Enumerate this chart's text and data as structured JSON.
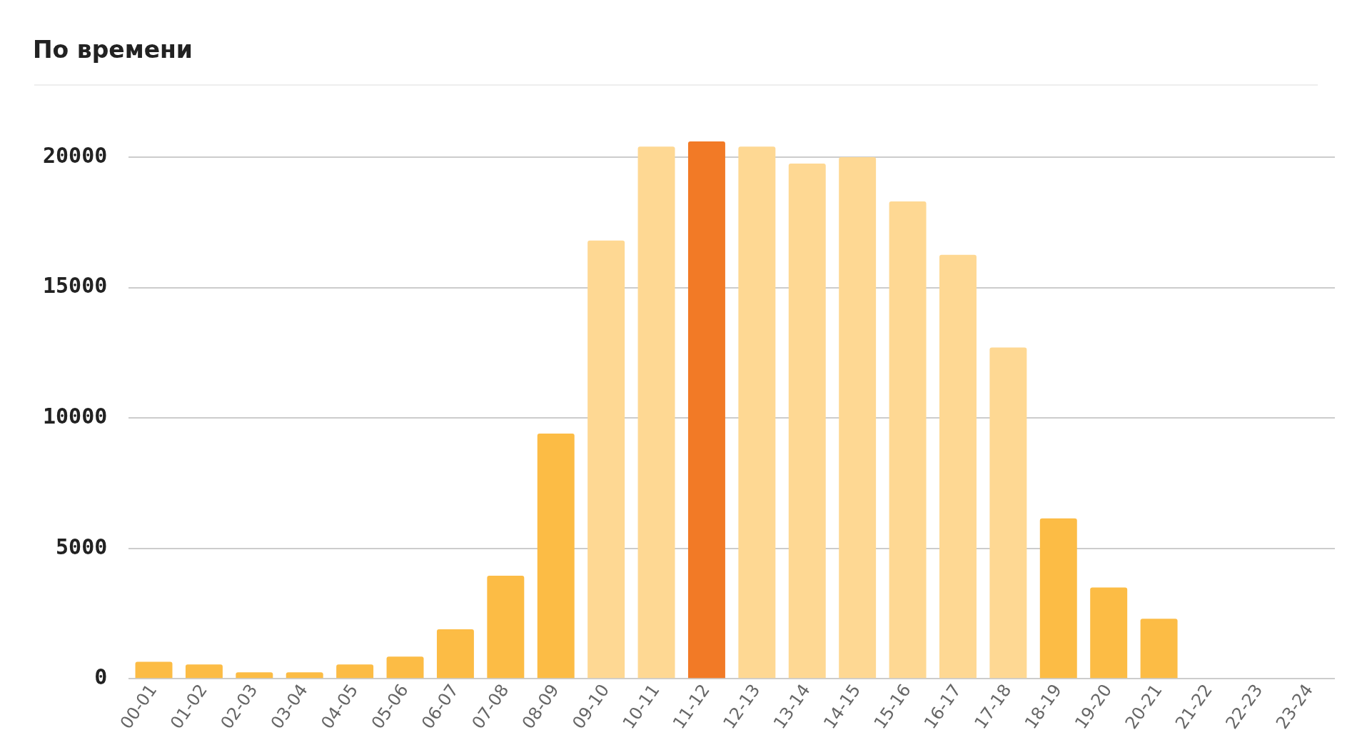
{
  "chart_data": {
    "type": "bar",
    "title": "По времени",
    "categories": [
      "00-01",
      "01-02",
      "02-03",
      "03-04",
      "04-05",
      "05-06",
      "06-07",
      "07-08",
      "08-09",
      "09-10",
      "10-11",
      "11-12",
      "12-13",
      "13-14",
      "14-15",
      "15-16",
      "16-17",
      "17-18",
      "18-19",
      "19-20",
      "20-21",
      "21-22",
      "22-23",
      "23-24"
    ],
    "values": [
      650,
      550,
      250,
      250,
      550,
      850,
      1900,
      3950,
      9400,
      16800,
      20400,
      20600,
      20400,
      19750,
      20000,
      18300,
      16250,
      12700,
      6150,
      3500,
      2300,
      null,
      null,
      null
    ],
    "colors": [
      "#fcbc45",
      "#fcbc45",
      "#fcbc45",
      "#fcbc45",
      "#fcbc45",
      "#fcbc45",
      "#fcbc45",
      "#fcbc45",
      "#fcbc45",
      "#fed893",
      "#fed893",
      "#f27a26",
      "#fed893",
      "#fed893",
      "#fed893",
      "#fed893",
      "#fed893",
      "#fed893",
      "#fcbc45",
      "#fcbc45",
      "#fcbc45",
      "#fcbc45",
      "#fcbc45",
      "#fcbc45"
    ],
    "ylim": [
      0,
      20600
    ],
    "yticks": [
      0,
      5000,
      10000,
      15000,
      20000
    ],
    "grid": "y",
    "legend": false
  }
}
